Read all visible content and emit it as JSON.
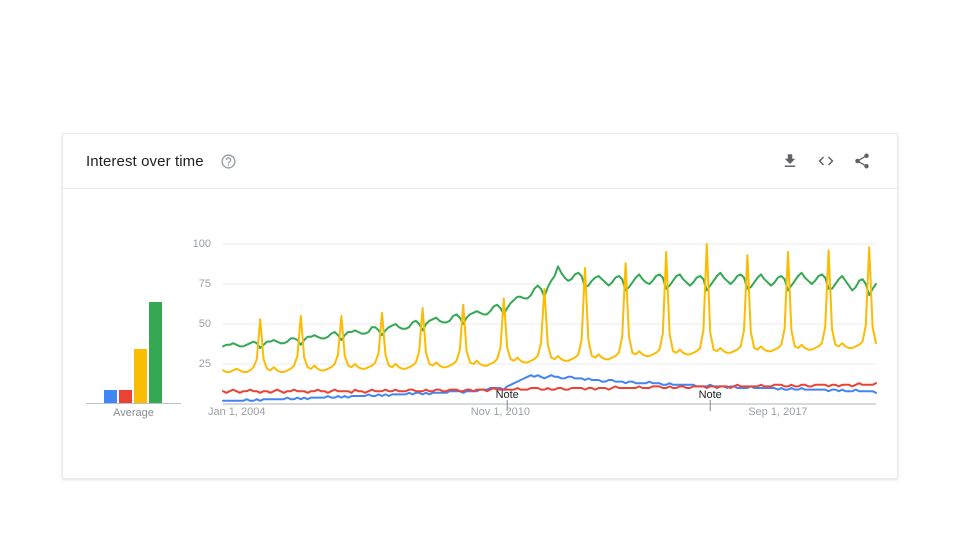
{
  "header": {
    "title": "Interest over time",
    "icons": [
      "help-icon",
      "download-icon",
      "embed-icon",
      "share-icon"
    ]
  },
  "colors": {
    "blue": "#4285f4",
    "red": "#ea4335",
    "yellow": "#fbbc04",
    "green": "#34a853",
    "gridline": "#ebebeb",
    "axis": "#bdc1c6",
    "icon_gray": "#5f6368",
    "help_gray": "#9aa0a6"
  },
  "average_chart": {
    "label": "Average",
    "bars": [
      {
        "name": "blue-average-bar",
        "color": "#4285f4",
        "value": 8
      },
      {
        "name": "red-average-bar",
        "color": "#ea4335",
        "value": 8
      },
      {
        "name": "yellow-average-bar",
        "color": "#fbbc04",
        "value": 34
      },
      {
        "name": "green-average-bar",
        "color": "#34a853",
        "value": 63
      }
    ]
  },
  "chart_data": {
    "type": "line",
    "title": "Interest over time",
    "ylim": [
      0,
      100
    ],
    "y_ticks": [
      25,
      50,
      75,
      100
    ],
    "y_tick_labels": [
      "100",
      "75",
      "50",
      "25"
    ],
    "months_total": 194,
    "x_start": "Jan 2004",
    "x_end": "Feb 2020",
    "x_ticks": [
      {
        "label": "Jan 1, 2004",
        "month_index": 0,
        "align": "left"
      },
      {
        "label": "Nov 1, 2010",
        "month_index": 82,
        "align": "center"
      },
      {
        "label": "Sep 1, 2017",
        "month_index": 164,
        "align": "center"
      }
    ],
    "notes": [
      {
        "label": "Note",
        "month_index": 84
      },
      {
        "label": "Note",
        "month_index": 144
      }
    ],
    "series": [
      {
        "name": "blue",
        "color": "#4285f4",
        "values": [
          2,
          2,
          2,
          2,
          2,
          2,
          2,
          3,
          2,
          2,
          3,
          2,
          3,
          3,
          3,
          3,
          3,
          3,
          3,
          4,
          3,
          3,
          4,
          3,
          4,
          3,
          4,
          4,
          4,
          4,
          4,
          5,
          4,
          4,
          5,
          4,
          5,
          4,
          5,
          5,
          5,
          5,
          5,
          6,
          5,
          5,
          6,
          5,
          6,
          5,
          6,
          6,
          6,
          6,
          6,
          7,
          6,
          7,
          7,
          6,
          7,
          6,
          7,
          7,
          7,
          7,
          7,
          8,
          8,
          8,
          8,
          7,
          8,
          8,
          8,
          8,
          9,
          9,
          9,
          10,
          10,
          10,
          10,
          9,
          11,
          12,
          13,
          14,
          15,
          16,
          17,
          18,
          17,
          18,
          17,
          16,
          17,
          18,
          17,
          17,
          16,
          16,
          17,
          17,
          16,
          16,
          16,
          15,
          16,
          15,
          15,
          15,
          14,
          14,
          15,
          15,
          14,
          14,
          14,
          13,
          14,
          14,
          13,
          13,
          13,
          13,
          14,
          13,
          13,
          13,
          12,
          12,
          13,
          12,
          12,
          12,
          12,
          12,
          12,
          12,
          11,
          11,
          11,
          11,
          12,
          11,
          11,
          11,
          11,
          10,
          11,
          11,
          10,
          10,
          10,
          10,
          11,
          10,
          10,
          10,
          10,
          10,
          10,
          10,
          9,
          10,
          9,
          9,
          10,
          9,
          9,
          10,
          9,
          9,
          9,
          9,
          9,
          9,
          9,
          8,
          9,
          9,
          8,
          9,
          8,
          8,
          8,
          9,
          8,
          8,
          8,
          8,
          8,
          7
        ]
      },
      {
        "name": "green",
        "color": "#34a853",
        "values": [
          36,
          37,
          37,
          38,
          37,
          36,
          36,
          37,
          38,
          39,
          38,
          35,
          37,
          39,
          39,
          40,
          39,
          38,
          38,
          39,
          41,
          41,
          40,
          37,
          40,
          42,
          42,
          43,
          42,
          41,
          41,
          42,
          44,
          45,
          43,
          40,
          43,
          45,
          45,
          46,
          45,
          44,
          44,
          45,
          48,
          48,
          46,
          43,
          46,
          48,
          49,
          50,
          48,
          47,
          47,
          48,
          51,
          52,
          50,
          46,
          50,
          52,
          53,
          54,
          52,
          51,
          51,
          52,
          55,
          56,
          54,
          50,
          54,
          56,
          57,
          58,
          57,
          56,
          56,
          58,
          61,
          62,
          60,
          56,
          60,
          63,
          65,
          67,
          67,
          66,
          66,
          68,
          72,
          74,
          72,
          67,
          73,
          77,
          80,
          86,
          82,
          79,
          77,
          78,
          81,
          82,
          80,
          73,
          74,
          77,
          79,
          80,
          78,
          76,
          74,
          76,
          79,
          80,
          78,
          71,
          73,
          76,
          79,
          81,
          78,
          76,
          75,
          77,
          80,
          81,
          79,
          72,
          74,
          77,
          80,
          81,
          78,
          76,
          74,
          76,
          79,
          80,
          78,
          71,
          74,
          77,
          80,
          82,
          79,
          77,
          75,
          77,
          80,
          81,
          79,
          72,
          73,
          76,
          79,
          81,
          78,
          76,
          74,
          76,
          79,
          80,
          78,
          71,
          74,
          77,
          80,
          82,
          79,
          77,
          75,
          77,
          80,
          81,
          79,
          72,
          72,
          75,
          78,
          80,
          77,
          74,
          71,
          73,
          77,
          78,
          75,
          68,
          72,
          75
        ]
      },
      {
        "name": "yellow",
        "color": "#fbbc04",
        "values": [
          21,
          20,
          20,
          21,
          22,
          21,
          20,
          20,
          21,
          23,
          28,
          53,
          28,
          22,
          21,
          23,
          21,
          20,
          20,
          21,
          22,
          24,
          30,
          55,
          29,
          23,
          22,
          24,
          22,
          21,
          21,
          22,
          23,
          25,
          31,
          55,
          30,
          24,
          23,
          25,
          23,
          22,
          22,
          23,
          24,
          26,
          32,
          57,
          31,
          24,
          23,
          25,
          23,
          22,
          22,
          23,
          24,
          26,
          33,
          60,
          32,
          25,
          24,
          26,
          24,
          23,
          23,
          24,
          25,
          27,
          34,
          62,
          33,
          26,
          25,
          27,
          25,
          24,
          24,
          25,
          26,
          28,
          35,
          66,
          35,
          28,
          27,
          29,
          27,
          26,
          26,
          27,
          28,
          30,
          38,
          72,
          37,
          29,
          28,
          30,
          28,
          27,
          27,
          28,
          29,
          31,
          40,
          85,
          40,
          30,
          29,
          31,
          29,
          28,
          28,
          29,
          30,
          32,
          42,
          88,
          42,
          32,
          31,
          33,
          31,
          30,
          30,
          31,
          32,
          34,
          44,
          95,
          44,
          33,
          32,
          34,
          32,
          31,
          31,
          32,
          33,
          35,
          46,
          100,
          45,
          34,
          33,
          35,
          33,
          32,
          32,
          33,
          34,
          36,
          46,
          93,
          45,
          35,
          34,
          36,
          34,
          33,
          33,
          34,
          35,
          37,
          47,
          95,
          46,
          36,
          35,
          37,
          35,
          34,
          34,
          35,
          36,
          38,
          48,
          96,
          47,
          37,
          36,
          38,
          36,
          35,
          35,
          36,
          37,
          39,
          49,
          98,
          48,
          38
        ]
      },
      {
        "name": "red",
        "color": "#ea4335",
        "values": [
          8,
          7,
          8,
          9,
          8,
          7,
          8,
          8,
          9,
          8,
          8,
          7,
          8,
          8,
          7,
          8,
          9,
          8,
          7,
          8,
          8,
          9,
          8,
          8,
          8,
          7,
          8,
          8,
          9,
          8,
          8,
          7,
          8,
          9,
          8,
          8,
          8,
          8,
          7,
          9,
          8,
          8,
          7,
          8,
          9,
          8,
          8,
          8,
          9,
          8,
          8,
          9,
          8,
          8,
          8,
          9,
          9,
          8,
          8,
          8,
          9,
          8,
          8,
          9,
          9,
          8,
          8,
          9,
          9,
          9,
          8,
          8,
          9,
          9,
          8,
          9,
          9,
          9,
          8,
          9,
          10,
          9,
          9,
          9,
          9,
          9,
          9,
          10,
          9,
          9,
          9,
          10,
          10,
          10,
          9,
          9,
          10,
          9,
          9,
          10,
          10,
          9,
          9,
          10,
          10,
          10,
          10,
          9,
          10,
          10,
          9,
          10,
          10,
          10,
          9,
          10,
          11,
          10,
          10,
          10,
          10,
          10,
          10,
          11,
          10,
          10,
          10,
          11,
          11,
          11,
          10,
          10,
          11,
          10,
          10,
          11,
          11,
          10,
          10,
          11,
          11,
          11,
          11,
          10,
          11,
          11,
          10,
          11,
          11,
          11,
          10,
          11,
          12,
          11,
          11,
          11,
          11,
          11,
          11,
          12,
          11,
          11,
          11,
          12,
          12,
          12,
          11,
          11,
          12,
          11,
          11,
          12,
          12,
          11,
          11,
          12,
          12,
          12,
          12,
          11,
          12,
          12,
          11,
          12,
          12,
          12,
          11,
          12,
          13,
          12,
          12,
          12,
          12,
          13
        ]
      }
    ]
  }
}
